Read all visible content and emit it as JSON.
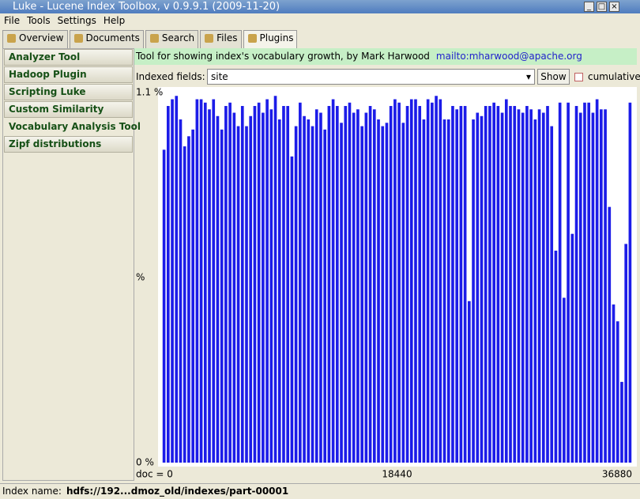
{
  "window": {
    "title": "Luke - Lucene Index Toolbox, v 0.9.9.1 (2009-11-20)"
  },
  "menu": [
    "File",
    "Tools",
    "Settings",
    "Help"
  ],
  "tabs": [
    "Overview",
    "Documents",
    "Search",
    "Files",
    "Plugins"
  ],
  "plugins": [
    "Analyzer Tool",
    "Hadoop Plugin",
    "Scripting Luke",
    "Custom Similarity",
    "Vocabulary Analysis Tool",
    "Zipf distributions"
  ],
  "plugin_info": {
    "description": "Tool for showing index's vocabulary growth, by Mark Harwood",
    "link": "mailto:mharwood@apache.org"
  },
  "controls": {
    "fields_label": "Indexed fields:",
    "field_value": "site",
    "button": "Show",
    "checkbox": "cumulative"
  },
  "chart_data": {
    "type": "bar",
    "color": "#1c1ce8",
    "ylim": [
      0,
      1.1
    ],
    "yticks": [
      {
        "value": 0,
        "label": "0 %"
      },
      {
        "value": 0.55,
        "label": "%"
      },
      {
        "value": 1.1,
        "label": "1.1 %"
      }
    ],
    "xlim": [
      0,
      36880
    ],
    "xticks": [
      {
        "value": 0,
        "label": "doc = 0"
      },
      18440,
      36880
    ],
    "values": [
      0.93,
      1.06,
      1.08,
      1.09,
      1.02,
      0.94,
      0.97,
      0.99,
      1.08,
      1.08,
      1.07,
      1.05,
      1.08,
      1.03,
      0.99,
      1.06,
      1.07,
      1.04,
      1.0,
      1.06,
      1.0,
      1.03,
      1.06,
      1.07,
      1.04,
      1.08,
      1.05,
      1.09,
      1.02,
      1.06,
      1.06,
      0.91,
      1.0,
      1.07,
      1.03,
      1.02,
      1.0,
      1.05,
      1.04,
      0.99,
      1.06,
      1.08,
      1.06,
      1.01,
      1.06,
      1.07,
      1.04,
      1.05,
      1.0,
      1.04,
      1.06,
      1.05,
      1.02,
      1.0,
      1.01,
      1.06,
      1.08,
      1.07,
      1.01,
      1.06,
      1.08,
      1.08,
      1.06,
      1.02,
      1.08,
      1.07,
      1.09,
      1.08,
      1.02,
      1.02,
      1.06,
      1.05,
      1.06,
      1.06,
      0.48,
      1.02,
      1.04,
      1.03,
      1.06,
      1.06,
      1.07,
      1.06,
      1.04,
      1.08,
      1.06,
      1.06,
      1.05,
      1.04,
      1.06,
      1.05,
      1.02,
      1.05,
      1.04,
      1.06,
      1.0,
      0.63,
      1.07,
      0.49,
      1.07,
      0.68,
      1.06,
      1.04,
      1.07,
      1.07,
      1.04,
      1.08,
      1.05,
      1.05,
      0.76,
      0.47,
      0.42,
      0.24,
      0.65,
      1.07
    ]
  },
  "status": {
    "label": "Index name:",
    "value": "hdfs://192...dmoz_old/indexes/part-00001"
  }
}
